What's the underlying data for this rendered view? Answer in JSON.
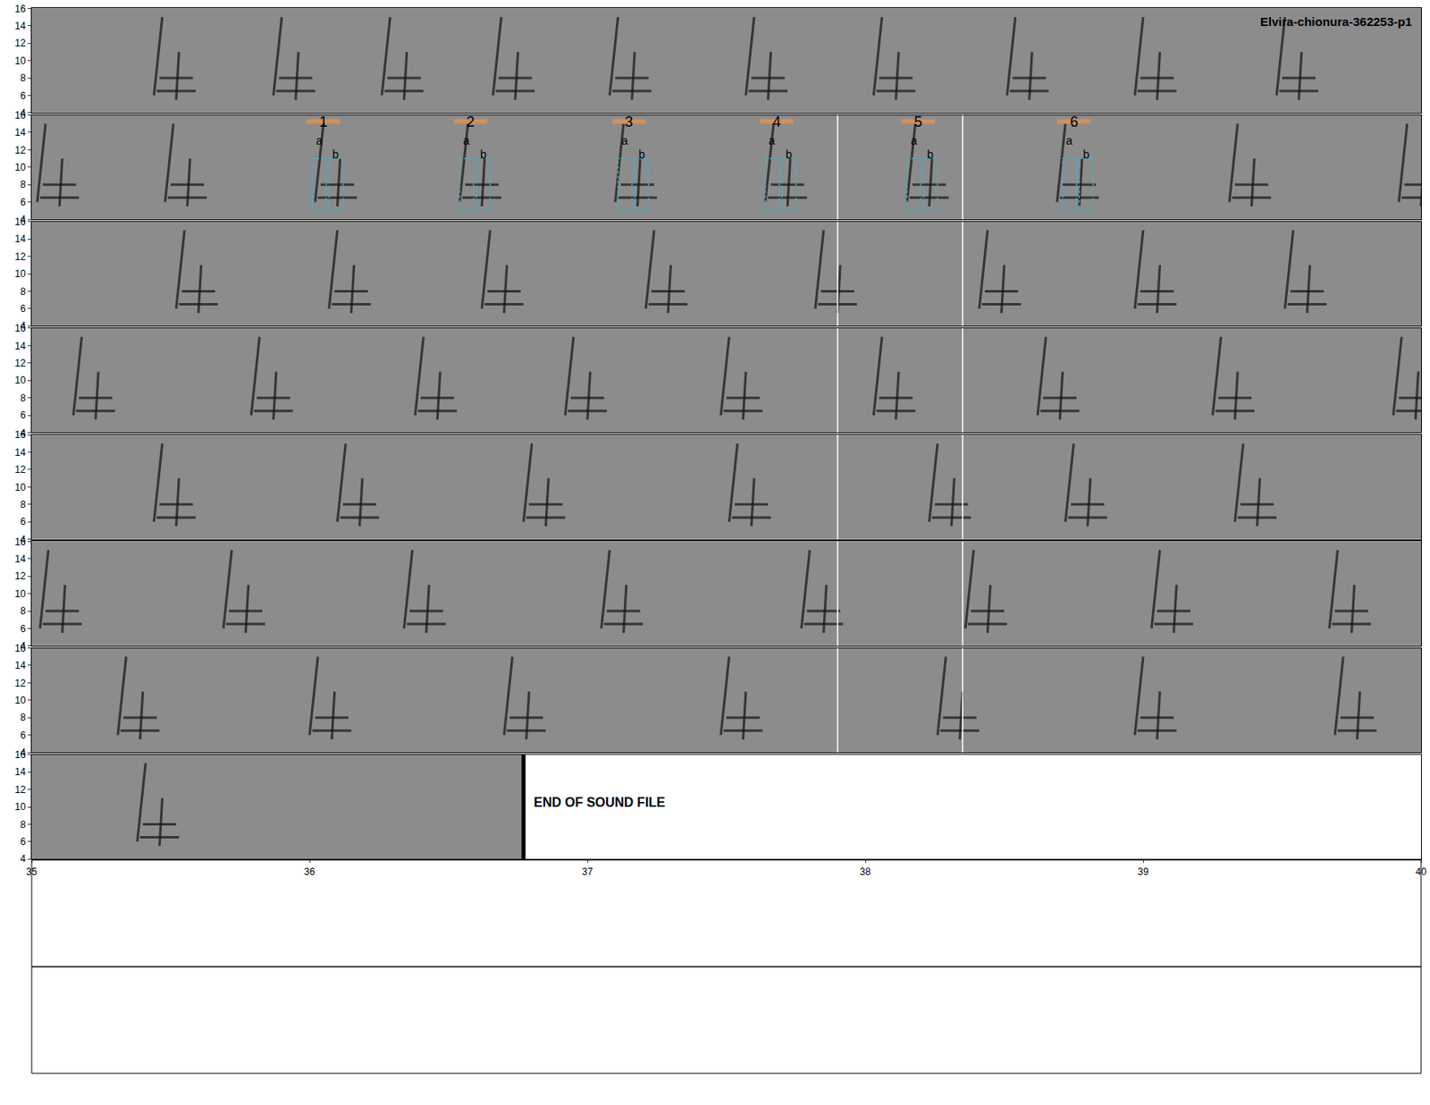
{
  "chart_data": {
    "type": "spectrogram",
    "title": "Elvira-chionura-362253-p1",
    "ylim": [
      4,
      16
    ],
    "yticks": [
      4,
      6,
      8,
      10,
      12,
      14,
      16
    ],
    "color": "#8c8c8c",
    "rows": [
      {
        "xlim": [
          0,
          5
        ],
        "calls": [
          0.44,
          0.87,
          1.26,
          1.66,
          2.08,
          2.57,
          3.03,
          3.51,
          3.97,
          4.48
        ],
        "dividers": []
      },
      {
        "xlim": [
          5,
          10
        ],
        "calls": [
          5.02,
          5.48,
          6.02,
          6.54,
          7.1,
          7.64,
          8.15,
          8.69,
          9.31,
          9.92
        ],
        "dividers": [
          7.9,
          8.35
        ],
        "selections": [
          {
            "label": "1",
            "t": 6.05,
            "parts": [
              "a",
              "b"
            ]
          },
          {
            "label": "2",
            "t": 6.58,
            "parts": [
              "a",
              "b"
            ]
          },
          {
            "label": "3",
            "t": 7.15,
            "parts": [
              "a",
              "b"
            ]
          },
          {
            "label": "4",
            "t": 7.68,
            "parts": [
              "a",
              "b"
            ]
          },
          {
            "label": "5",
            "t": 8.19,
            "parts": [
              "a",
              "b"
            ]
          },
          {
            "label": "6",
            "t": 8.75,
            "parts": [
              "a",
              "b"
            ]
          }
        ]
      },
      {
        "xlim": [
          10,
          15
        ],
        "calls": [
          10.52,
          11.07,
          11.62,
          12.21,
          12.82,
          13.41,
          13.97,
          14.51
        ],
        "dividers": [
          12.9,
          13.35
        ]
      },
      {
        "xlim": [
          15,
          20
        ],
        "calls": [
          15.15,
          15.79,
          16.38,
          16.92,
          17.48,
          18.03,
          18.62,
          19.25,
          19.9
        ],
        "dividers": [
          17.9,
          18.35
        ]
      },
      {
        "xlim": [
          20,
          25
        ],
        "calls": [
          20.44,
          21.1,
          21.77,
          22.51,
          23.23,
          23.72,
          24.33
        ],
        "dividers": [
          22.9,
          23.35
        ]
      },
      {
        "xlim": [
          25,
          30
        ],
        "calls": [
          25.03,
          25.69,
          26.34,
          27.05,
          27.77,
          28.36,
          29.03,
          29.67
        ],
        "dividers": [
          27.9,
          28.35
        ]
      },
      {
        "xlim": [
          30,
          35
        ],
        "calls": [
          30.31,
          31.0,
          31.7,
          32.48,
          33.26,
          33.97,
          34.69
        ],
        "dividers": [
          32.9,
          33.35
        ]
      },
      {
        "xlim": [
          35,
          40
        ],
        "calls": [
          35.38
        ],
        "dividers": [],
        "xticks": [
          35,
          36,
          37,
          38,
          39,
          40
        ],
        "end": 36.77,
        "end_label": "END OF SOUND FILE"
      }
    ]
  }
}
